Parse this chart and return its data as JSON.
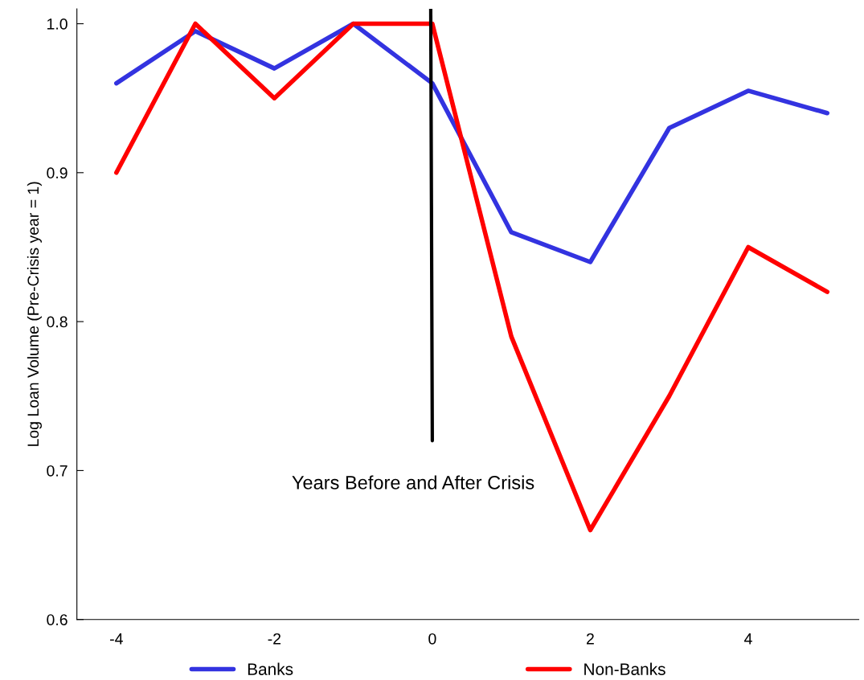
{
  "chart_data": {
    "type": "line",
    "xlabel": "Years Before and After Crisis",
    "ylabel": "Log Loan Volume (Pre-Crisis year = 1)",
    "x": [
      -4,
      -3,
      -2,
      -1,
      0,
      1,
      2,
      3,
      4,
      5
    ],
    "series": [
      {
        "name": "Banks",
        "color": "#3333e0",
        "values": [
          0.96,
          0.995,
          0.97,
          1.0,
          0.96,
          0.86,
          0.84,
          0.93,
          0.955,
          0.94
        ]
      },
      {
        "name": "Non-Banks",
        "color": "#ff0000",
        "values": [
          0.9,
          1.0,
          0.95,
          1.0,
          1.0,
          0.79,
          0.66,
          0.75,
          0.85,
          0.82
        ]
      },
      {
        "color": "#000000",
        "x": [
          -0.02,
          0.0
        ],
        "values": [
          1.01,
          0.72
        ]
      }
    ],
    "xlim": [
      -4.5,
      5.4
    ],
    "ylim": [
      0.6,
      1.01
    ],
    "xticks": [
      -4,
      -2,
      0,
      2,
      4
    ],
    "yticks": [
      0.6,
      0.7,
      0.8,
      0.9,
      {
        "value": 1,
        "label": "1.0"
      }
    ],
    "grid": false,
    "legend": "bottom",
    "marker": "none",
    "line_style": "solid"
  }
}
